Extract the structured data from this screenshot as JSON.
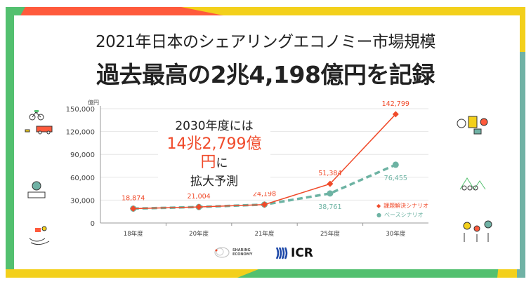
{
  "header": {
    "title_line1": "2021年日本のシェアリングエコノミー市場規模",
    "title_line2": "過去最高の2兆4,198億円を記録"
  },
  "callout": {
    "line1": "2030年度には",
    "highlight": "14兆2,799億円",
    "suffix": "に",
    "line3": "拡大予測"
  },
  "logos": {
    "sharing_economy": "SHARING ECONOMY",
    "icr": "ICR"
  },
  "colors": {
    "problem": "#f04a2a",
    "base": "#6db3a3",
    "green": "#53c06f",
    "yellow": "#f3d01b",
    "red": "#ff5a3c",
    "teal": "#70b2a5"
  },
  "chart_data": {
    "type": "line",
    "ylabel": "億円",
    "categories": [
      "18年度",
      "20年度",
      "21年度",
      "25年度",
      "30年度"
    ],
    "ylim": [
      0,
      150000
    ],
    "yticks": [
      0,
      30000,
      60000,
      90000,
      120000,
      150000
    ],
    "ytick_labels": [
      "0",
      "30,000",
      "60,000",
      "90,000",
      "120,000",
      "150,000"
    ],
    "grid": true,
    "legend": "bottom-right",
    "series": [
      {
        "name": "課題解決シナリオ",
        "values": [
          18874,
          21004,
          24198,
          51384,
          142799
        ],
        "labels": [
          "18,874",
          "21,004",
          "24,198",
          "51,384",
          "142,799"
        ],
        "style": "solid-diamond"
      },
      {
        "name": "ベースシナリオ",
        "values": [
          18874,
          21004,
          24198,
          38761,
          76455
        ],
        "labels": [
          "",
          "",
          "",
          "38,761",
          "76,455"
        ],
        "style": "dashed-circle"
      }
    ]
  }
}
